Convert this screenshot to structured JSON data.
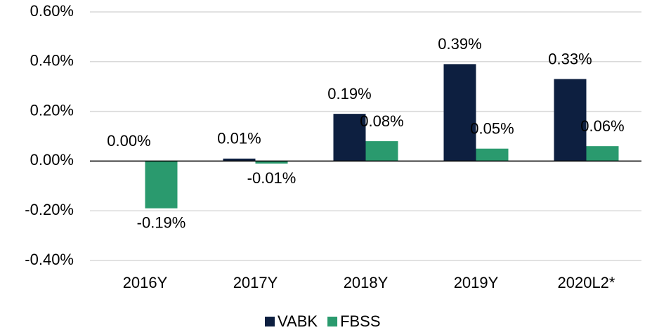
{
  "chart_data": {
    "type": "bar",
    "categories": [
      "2016Y",
      "2017Y",
      "2018Y",
      "2019Y",
      "2020L2*"
    ],
    "series": [
      {
        "name": "VABK",
        "color": "#0d1f40",
        "values": [
          0.0,
          0.01,
          0.19,
          0.39,
          0.33
        ],
        "value_labels": [
          "0.00%",
          "0.01%",
          "0.19%",
          "0.39%",
          "0.33%"
        ]
      },
      {
        "name": "FBSS",
        "color": "#2a9a6e",
        "values": [
          -0.19,
          -0.01,
          0.08,
          0.05,
          0.06
        ],
        "value_labels": [
          "-0.19%",
          "-0.01%",
          "0.08%",
          "0.05%",
          "0.06%"
        ]
      }
    ],
    "ylim": [
      -0.4,
      0.6
    ],
    "yticks": [
      {
        "value": -0.4,
        "label": "-0.40%"
      },
      {
        "value": -0.2,
        "label": "-0.20%"
      },
      {
        "value": 0,
        "label": "0.00%"
      },
      {
        "value": 0.2,
        "label": "0.20%"
      },
      {
        "value": 0.4,
        "label": "0.40%"
      },
      {
        "value": 0.6,
        "label": "0.60%"
      }
    ],
    "grid": true,
    "legend": "bottom"
  }
}
